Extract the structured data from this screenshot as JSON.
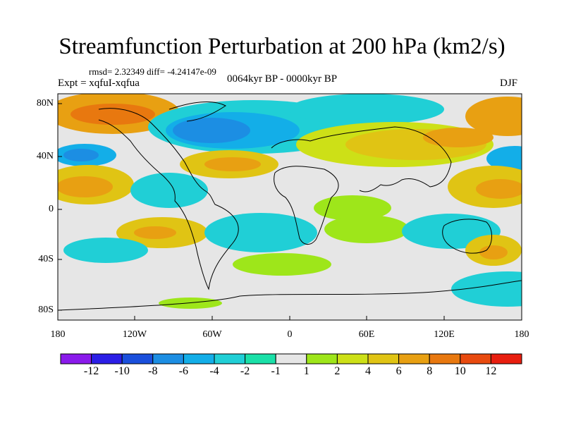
{
  "title": "Streamfunction Perturbation at 200 hPa (km2/s)",
  "stats": "rmsd= 2.32349 diff= -4.24147e-09",
  "experiment": "Expt = xqfuI-xqfua",
  "period": "0064kyr BP - 0000kyr BP",
  "season": "DJF",
  "axes": {
    "lat_labels": [
      "80N",
      "40N",
      "0",
      "40S",
      "80S"
    ],
    "lon_labels": [
      "180",
      "120W",
      "60W",
      "0",
      "60E",
      "120E",
      "180"
    ]
  },
  "colorbar": {
    "labels": [
      "-12",
      "-10",
      "-8",
      "-6",
      "-4",
      "-2",
      "-1",
      "1",
      "2",
      "4",
      "6",
      "8",
      "10",
      "12"
    ],
    "colors": [
      "#8a1aeb",
      "#2b1ee6",
      "#1a4fdc",
      "#1c8ee3",
      "#13aee8",
      "#20cfd6",
      "#1ae0a8",
      "#e6e6e6",
      "#9ee61a",
      "#cde017",
      "#e0c414",
      "#e8a012",
      "#e8780f",
      "#e84a0f",
      "#e81e0f"
    ]
  }
}
